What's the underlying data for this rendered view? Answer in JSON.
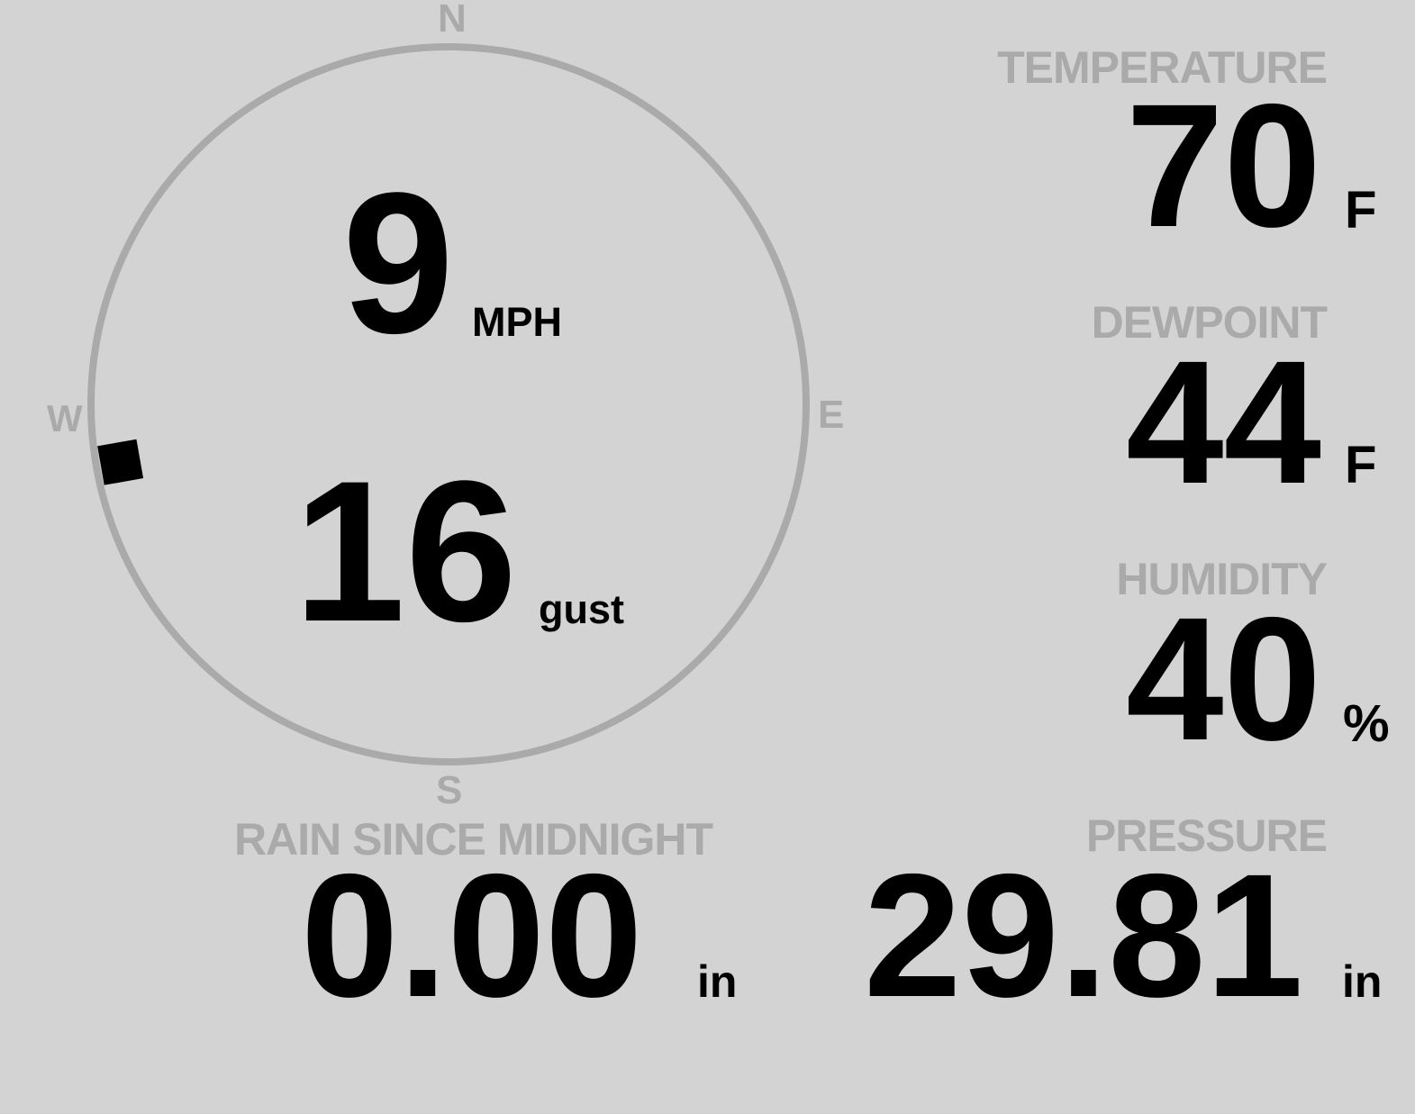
{
  "colors": {
    "background": "#d3d3d3",
    "label": "#aaaaaa",
    "value": "#000000",
    "ring": "#aaaaaa"
  },
  "wind": {
    "compass": {
      "north": "N",
      "south": "S",
      "east": "E",
      "west": "W"
    },
    "speed": "9",
    "speed_unit": "MPH",
    "gust": "16",
    "gust_unit": "gust",
    "direction_deg": 260
  },
  "rain": {
    "label": "RAIN SINCE MIDNIGHT",
    "value": "0.00",
    "unit": "in"
  },
  "temperature": {
    "label": "TEMPERATURE",
    "value": "70",
    "unit": "F"
  },
  "dewpoint": {
    "label": "DEWPOINT",
    "value": "44",
    "unit": "F"
  },
  "humidity": {
    "label": "HUMIDITY",
    "value": "40",
    "unit": "%"
  },
  "pressure": {
    "label": "PRESSURE",
    "value": "29.81",
    "unit": "in"
  }
}
